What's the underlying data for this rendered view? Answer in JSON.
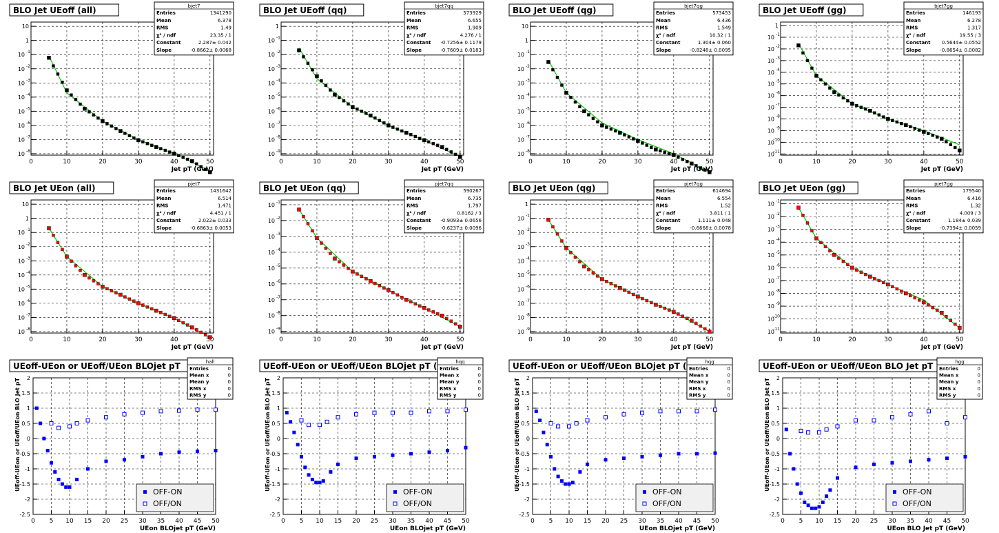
{
  "colors": {
    "data_marker": "#000000",
    "ueon_marker": "#ff0000",
    "fit_line": "#00cc00",
    "ratio_marker": "#0000ff",
    "grid": "#000000",
    "legend_bg": "#f0f0f0"
  },
  "legend": {
    "diff_label": "OFF-ON",
    "ratio_label": "OFF/ON"
  },
  "panels": [
    {
      "title": "BLO Jet UEoff (all)",
      "stats_name": "bjet7",
      "stats": [
        [
          "Entries",
          "1341290"
        ],
        [
          "Mean",
          "6.378"
        ],
        [
          "RMS",
          "1.49"
        ],
        [
          "χ² / ndf",
          "23.35 / 1"
        ],
        [
          "Constant",
          "2.287± 0.042"
        ],
        [
          "Slope",
          "-0.8662± 0.0068"
        ]
      ],
      "xlabel": "Jet pT (GeV)"
    },
    {
      "title": "BLO Jet UEoff (qq)",
      "stats_name": "bjet7qq",
      "stats": [
        [
          "Entries",
          "573929"
        ],
        [
          "Mean",
          "6.655"
        ],
        [
          "RMS",
          "1.909"
        ],
        [
          "χ² / ndf",
          "4.276 / 1"
        ],
        [
          "Constant",
          "-0.7256± 0.1179"
        ],
        [
          "Slope",
          "-0.7609± 0.0183"
        ]
      ],
      "xlabel": "Jet pT (GeV)"
    },
    {
      "title": "BLO Jet UEoff (qg)",
      "stats_name": "bjet7qg",
      "stats": [
        [
          "Entries",
          "573453"
        ],
        [
          "Mean",
          "6.436"
        ],
        [
          "RMS",
          "1.549"
        ],
        [
          "χ² / ndf",
          "10.32 / 1"
        ],
        [
          "Constant",
          "1.304± 0.060"
        ],
        [
          "Slope",
          "-0.8248± 0.0095"
        ]
      ],
      "xlabel": "Jet pT (GeV)"
    },
    {
      "title": "BLO Jet UEoff (gg)",
      "stats_name": "bjet7gg",
      "stats": [
        [
          "Entries",
          "146193"
        ],
        [
          "Mean",
          "6.278"
        ],
        [
          "RMS",
          "1.317"
        ],
        [
          "χ² / ndf",
          "19.55 / 3"
        ],
        [
          "Constant",
          "0.5644± 0.0552"
        ],
        [
          "Slope",
          "-0.8654± 0.0082"
        ]
      ],
      "xlabel": "Jet pT (GeV)"
    },
    {
      "title": "BLO Jet UEon (all)",
      "stats_name": "pjet7",
      "stats": [
        [
          "Entries",
          "1431642"
        ],
        [
          "Mean",
          "6.514"
        ],
        [
          "RMS",
          "1.471"
        ],
        [
          "χ² / ndf",
          "4.451 / 1"
        ],
        [
          "Constant",
          "2.022± 0.033"
        ],
        [
          "Slope",
          "-0.6863± 0.0053"
        ]
      ],
      "xlabel": "Jet pT (GeV)"
    },
    {
      "title": "BLO Jet UEon (qq)",
      "stats_name": "pjet7qq",
      "stats": [
        [
          "Entries",
          "590267"
        ],
        [
          "Mean",
          "6.735"
        ],
        [
          "RMS",
          "1.797"
        ],
        [
          "χ² / ndf",
          "0.8162 / 3"
        ],
        [
          "Constant",
          "-0.9093± 0.0656"
        ],
        [
          "Slope",
          "-0.6237± 0.0096"
        ]
      ],
      "xlabel": "Jet pT (GeV)"
    },
    {
      "title": "BLO Jet UEon (qg)",
      "stats_name": "pjet7qg",
      "stats": [
        [
          "Entries",
          "614694"
        ],
        [
          "Mean",
          "6.554"
        ],
        [
          "RMS",
          "1.52"
        ],
        [
          "χ² / ndf",
          "3.811 / 1"
        ],
        [
          "Constant",
          "1.111± 0.048"
        ],
        [
          "Slope",
          "-0.6668± 0.0078"
        ]
      ],
      "xlabel": "Jet pT (GeV)"
    },
    {
      "title": "BLO Jet UEon (gg)",
      "stats_name": "pjet7gg",
      "stats": [
        [
          "Entries",
          "179540"
        ],
        [
          "Mean",
          "6.416"
        ],
        [
          "RMS",
          "1.32"
        ],
        [
          "χ² / ndf",
          "4.009 / 3"
        ],
        [
          "Constant",
          "1.184± 0.039"
        ],
        [
          "Slope",
          "-0.7394± 0.0059"
        ]
      ],
      "xlabel": "Jet pT (GeV)"
    },
    {
      "title": "UEoff-UEon or UEoff/UEon BLOjet pT",
      "stats_name": "hall",
      "stats": [
        [
          "Entries",
          "0"
        ],
        [
          "Mean x",
          "0"
        ],
        [
          "Mean y",
          "0"
        ],
        [
          "RMS x",
          "0"
        ],
        [
          "RMS y",
          "0"
        ]
      ],
      "xlabel": "UEon BLOjet pT (GeV)",
      "ylabel": "UEoff-UEon or UEoff/UEon BLO Jet pT"
    },
    {
      "title": "UEoff-UEon or UEoff/UEon BLOjet pT (qq)",
      "stats_name": "hqq",
      "stats": [
        [
          "Entries",
          "0"
        ],
        [
          "Mean x",
          "0"
        ],
        [
          "Mean y",
          "0"
        ],
        [
          "RMS x",
          "0"
        ],
        [
          "RMS y",
          "0"
        ]
      ],
      "xlabel": "UEon BLOjet pT (GeV)",
      "ylabel": "UEoff-UEon or UEoff/UEon BLO Jet pT"
    },
    {
      "title": "UEoff-UEon or UEoff/UEon BLOjet pT (qg)",
      "stats_name": "hqg",
      "stats": [
        [
          "Entries",
          "0"
        ],
        [
          "Mean x",
          "0"
        ],
        [
          "Mean y",
          "0"
        ],
        [
          "RMS x",
          "0"
        ],
        [
          "RMS y",
          "0"
        ]
      ],
      "xlabel": "UEon BLOjet pT (GeV)",
      "ylabel": "UEoff-UEon or UEoff/UEon BLO Jet pT"
    },
    {
      "title": "UEoff-UEon or UEoff/UEon BLO Jet pT (gg)",
      "stats_name": "hgg",
      "stats": [
        [
          "Entries",
          "0"
        ],
        [
          "Mean x",
          "0"
        ],
        [
          "Mean y",
          "0"
        ],
        [
          "RMS x",
          "0"
        ],
        [
          "RMS y",
          "0"
        ]
      ],
      "xlabel": "UEon BLO Jet pT (GeV)",
      "ylabel": "UEoff-UEon or UEoff/UEon BLO Jet pT"
    }
  ],
  "chart_data": [
    {
      "type": "scatter",
      "log_y": true,
      "grid": true,
      "xlim": [
        0,
        51
      ],
      "ytick_exponents": [
        1,
        0,
        -1,
        -2,
        -3,
        -4,
        -5,
        -6,
        -7,
        -8
      ],
      "x": [
        5,
        10,
        15,
        20,
        25,
        30,
        35,
        40,
        45,
        50
      ],
      "y": [
        0.06,
        0.0003,
        1.5e-05,
        2e-06,
        4e-07,
        9e-08,
        3e-08,
        1e-08,
        3e-09,
        5e-10
      ],
      "fit": [
        [
          5,
          0.08
        ],
        [
          10,
          0.0002
        ],
        [
          20,
          2e-06
        ],
        [
          30,
          1e-07
        ],
        [
          40,
          1e-08
        ],
        [
          50,
          6e-10
        ]
      ]
    },
    {
      "type": "scatter",
      "log_y": true,
      "grid": true,
      "xlim": [
        0,
        51
      ],
      "ytick_exponents": [
        0,
        -1,
        -2,
        -3,
        -4,
        -5,
        -6,
        -7,
        -8,
        -9
      ],
      "x": [
        5,
        10,
        15,
        20,
        25,
        30,
        35,
        40,
        45,
        50
      ],
      "y": [
        0.02,
        0.0003,
        1.5e-05,
        2e-06,
        5e-07,
        1e-07,
        3e-08,
        9e-09,
        3e-09,
        6e-10
      ],
      "fit": [
        [
          5,
          0.03
        ],
        [
          10,
          0.0002
        ],
        [
          20,
          2e-06
        ],
        [
          30,
          1e-07
        ],
        [
          40,
          9e-09
        ],
        [
          50,
          6e-10
        ]
      ]
    },
    {
      "type": "scatter",
      "log_y": true,
      "grid": true,
      "xlim": [
        0,
        51
      ],
      "ytick_exponents": [
        1,
        0,
        -1,
        -2,
        -3,
        -4,
        -5,
        -6,
        -7,
        -8
      ],
      "x": [
        5,
        10,
        15,
        20,
        25,
        30,
        35,
        40,
        45,
        50
      ],
      "y": [
        0.03,
        0.0002,
        1e-05,
        1e-06,
        3e-07,
        8e-08,
        2e-08,
        8e-09,
        2e-09,
        5e-10
      ],
      "fit": [
        [
          5,
          0.04
        ],
        [
          10,
          0.0002
        ],
        [
          20,
          1.5e-06
        ],
        [
          30,
          1e-07
        ],
        [
          40,
          1e-08
        ],
        [
          50,
          5e-10
        ]
      ]
    },
    {
      "type": "scatter",
      "log_y": true,
      "grid": true,
      "xlim": [
        0,
        51
      ],
      "ytick_exponents": [
        0,
        -1,
        -2,
        -3,
        -4,
        -5,
        -6,
        -7,
        -8,
        -9,
        -10,
        -11
      ],
      "x": [
        5,
        10,
        15,
        20,
        25,
        30,
        35,
        40,
        45,
        50
      ],
      "y": [
        0.02,
        5e-05,
        2e-06,
        2e-07,
        5e-08,
        1e-08,
        3e-09,
        8e-10,
        2e-10,
        2e-11
      ],
      "fit": [
        [
          5,
          0.03
        ],
        [
          10,
          5e-05
        ],
        [
          20,
          2e-07
        ],
        [
          30,
          1e-08
        ],
        [
          40,
          1e-09
        ],
        [
          50,
          6e-11
        ]
      ]
    },
    {
      "type": "scatter",
      "log_y": true,
      "grid": true,
      "xlim": [
        0,
        51
      ],
      "ytick_exponents": [
        1,
        0,
        -1,
        -2,
        -3,
        -4,
        -5,
        -6,
        -7,
        -8
      ],
      "x": [
        5,
        10,
        15,
        20,
        25,
        30,
        35,
        40,
        45,
        50
      ],
      "y": [
        0.2,
        0.002,
        0.0001,
        1.5e-05,
        4e-06,
        1e-06,
        3e-07,
        9e-08,
        2e-08,
        4e-09
      ],
      "fit": [
        [
          5,
          0.2
        ],
        [
          10,
          0.002
        ],
        [
          20,
          1.5e-05
        ],
        [
          30,
          1e-06
        ],
        [
          40,
          9e-08
        ],
        [
          50,
          4e-09
        ]
      ]
    },
    {
      "type": "scatter",
      "log_y": true,
      "grid": true,
      "xlim": [
        0,
        51
      ],
      "ytick_exponents": [
        -1,
        -2,
        -3,
        -4,
        -5,
        -6,
        -7,
        -8,
        -9
      ],
      "x": [
        5,
        10,
        15,
        20,
        25,
        30,
        35,
        40,
        45,
        50
      ],
      "y": [
        0.05,
        0.0008,
        4e-05,
        6e-06,
        1.5e-06,
        4e-07,
        1e-07,
        3e-08,
        1e-08,
        2e-09
      ],
      "fit": [
        [
          5,
          0.05
        ],
        [
          10,
          0.0008
        ],
        [
          20,
          6e-06
        ],
        [
          30,
          4e-07
        ],
        [
          40,
          3e-08
        ],
        [
          50,
          2e-09
        ]
      ]
    },
    {
      "type": "scatter",
      "log_y": true,
      "grid": true,
      "xlim": [
        0,
        51
      ],
      "ytick_exponents": [
        0,
        -1,
        -2,
        -3,
        -4,
        -5,
        -6,
        -7,
        -8,
        -9
      ],
      "x": [
        5,
        10,
        15,
        20,
        25,
        30,
        35,
        40,
        45,
        50
      ],
      "y": [
        0.08,
        0.0008,
        4e-05,
        5e-06,
        1.2e-06,
        3e-07,
        8e-08,
        2.5e-08,
        6e-09,
        1e-09
      ],
      "fit": [
        [
          5,
          0.08
        ],
        [
          10,
          0.0008
        ],
        [
          20,
          5e-06
        ],
        [
          30,
          3e-07
        ],
        [
          40,
          2.5e-08
        ],
        [
          50,
          1e-09
        ]
      ]
    },
    {
      "type": "scatter",
      "log_y": true,
      "grid": true,
      "xlim": [
        0,
        51
      ],
      "ytick_exponents": [
        -1,
        -2,
        -3,
        -4,
        -5,
        -6,
        -7,
        -8,
        -9,
        -10,
        -11
      ],
      "x": [
        5,
        10,
        15,
        20,
        25,
        30,
        35,
        40,
        45,
        50
      ],
      "y": [
        0.05,
        0.0002,
        1e-05,
        1e-06,
        2e-07,
        5e-08,
        1e-08,
        2e-09,
        3e-10,
        2e-11
      ],
      "fit": [
        [
          5,
          0.05
        ],
        [
          10,
          0.0002
        ],
        [
          20,
          1e-06
        ],
        [
          30,
          5e-08
        ],
        [
          40,
          3e-09
        ],
        [
          50,
          2e-11
        ]
      ]
    },
    {
      "type": "scatter",
      "ylim": [
        -2.5,
        2
      ],
      "xlim": [
        0,
        50
      ],
      "grid": true,
      "series": [
        {
          "name": "OFF-ON",
          "x": [
            1,
            2,
            3,
            4,
            5,
            6,
            7,
            8,
            9,
            10,
            12,
            15,
            20,
            25,
            30,
            35,
            40,
            45,
            50
          ],
          "y": [
            1.0,
            0.5,
            0.0,
            -0.4,
            -0.8,
            -1.1,
            -1.35,
            -1.5,
            -1.6,
            -1.6,
            -1.35,
            -1.0,
            -0.75,
            -0.7,
            -0.6,
            -0.5,
            -0.45,
            -0.42,
            -0.4
          ]
        },
        {
          "name": "OFF/ON",
          "x": [
            5,
            7,
            10,
            12,
            15,
            20,
            25,
            30,
            35,
            40,
            45,
            50
          ],
          "y": [
            0.5,
            0.35,
            0.4,
            0.5,
            0.6,
            0.7,
            0.8,
            0.85,
            0.9,
            0.92,
            0.95,
            0.95
          ]
        }
      ]
    },
    {
      "type": "scatter",
      "ylim": [
        -2.5,
        2
      ],
      "xlim": [
        0,
        50
      ],
      "grid": true,
      "series": [
        {
          "name": "OFF-ON",
          "x": [
            1,
            2,
            3,
            4,
            5,
            6,
            7,
            8,
            9,
            10,
            11,
            13,
            15,
            20,
            25,
            30,
            35,
            40,
            45,
            50
          ],
          "y": [
            0.85,
            0.55,
            0.2,
            -0.2,
            -0.6,
            -0.95,
            -1.2,
            -1.35,
            -1.45,
            -1.45,
            -1.4,
            -1.1,
            -0.85,
            -0.65,
            -0.6,
            -0.55,
            -0.5,
            -0.45,
            -0.4,
            -0.3
          ]
        },
        {
          "name": "OFF/ON",
          "x": [
            5,
            7,
            10,
            12,
            15,
            20,
            25,
            30,
            35,
            40,
            45,
            50
          ],
          "y": [
            0.6,
            0.45,
            0.45,
            0.55,
            0.7,
            0.8,
            0.85,
            0.85,
            0.85,
            0.9,
            0.9,
            0.95
          ]
        }
      ]
    },
    {
      "type": "scatter",
      "ylim": [
        -2.5,
        2
      ],
      "xlim": [
        0,
        50
      ],
      "grid": true,
      "series": [
        {
          "name": "OFF-ON",
          "x": [
            1,
            2,
            3,
            4,
            5,
            6,
            7,
            8,
            9,
            10,
            11,
            13,
            15,
            20,
            25,
            30,
            35,
            40,
            45,
            50
          ],
          "y": [
            0.9,
            0.6,
            0.2,
            -0.2,
            -0.6,
            -1.0,
            -1.25,
            -1.4,
            -1.5,
            -1.5,
            -1.45,
            -1.1,
            -0.85,
            -0.7,
            -0.65,
            -0.6,
            -0.55,
            -0.5,
            -0.5,
            -0.48
          ]
        },
        {
          "name": "OFF/ON",
          "x": [
            5,
            7,
            10,
            12,
            15,
            20,
            25,
            30,
            35,
            40,
            45,
            50
          ],
          "y": [
            0.5,
            0.4,
            0.4,
            0.5,
            0.6,
            0.7,
            0.8,
            0.85,
            0.9,
            0.9,
            0.9,
            0.95
          ]
        }
      ]
    },
    {
      "type": "scatter",
      "ylim": [
        -2.5,
        2
      ],
      "xlim": [
        0,
        50
      ],
      "grid": true,
      "series": [
        {
          "name": "OFF-ON",
          "x": [
            1,
            2,
            3,
            4,
            5,
            6,
            7,
            8,
            9,
            10,
            11,
            12,
            13,
            15,
            20,
            25,
            30,
            35,
            40,
            45,
            50
          ],
          "y": [
            0.3,
            -0.5,
            -1.0,
            -1.5,
            -1.8,
            -2.1,
            -2.2,
            -2.3,
            -2.3,
            -2.25,
            -2.1,
            -1.9,
            -1.7,
            -1.3,
            -0.95,
            -0.85,
            -0.8,
            -0.75,
            -0.7,
            -0.65,
            -0.6
          ]
        },
        {
          "name": "OFF/ON",
          "x": [
            5,
            7,
            10,
            12,
            15,
            20,
            25,
            30,
            35,
            40,
            45,
            50
          ],
          "y": [
            0.25,
            0.2,
            0.2,
            0.3,
            0.4,
            0.6,
            0.6,
            0.7,
            0.8,
            0.9,
            0.5,
            0.7
          ]
        }
      ]
    }
  ]
}
